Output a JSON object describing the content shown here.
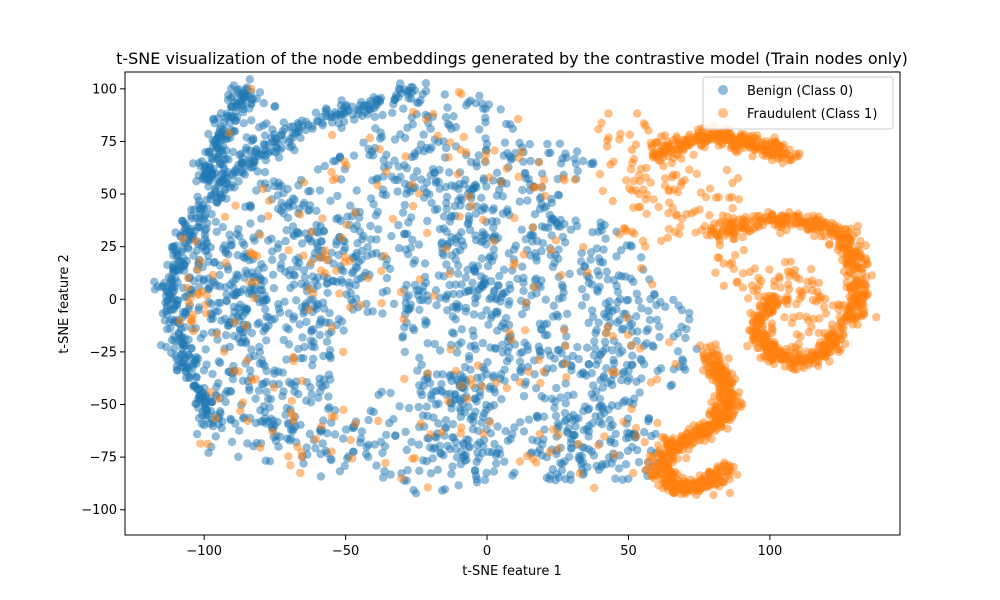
{
  "chart_data": {
    "type": "scatter",
    "title": "t-SNE visualization of the node embeddings generated by the contrastive model (Train nodes only)",
    "xlabel": "t-SNE feature 1",
    "ylabel": "t-SNE feature 2",
    "xlim": [
      -128,
      146
    ],
    "ylim": [
      -112,
      108
    ],
    "xticks": [
      -100,
      -50,
      0,
      50,
      100
    ],
    "yticks": [
      -100,
      -75,
      -50,
      -25,
      0,
      25,
      50,
      75,
      100
    ],
    "grid": false,
    "legend_position": "top-right",
    "series": [
      {
        "name": "Benign (Class 0)",
        "color": "#1f77b4",
        "alpha": 0.5,
        "regions": [
          {
            "cx": -83,
            "cy": 40,
            "rx": 18,
            "ry": 62
          },
          {
            "cx": -95,
            "cy": -5,
            "rx": 15,
            "ry": 45
          },
          {
            "cx": -70,
            "cy": -5,
            "rx": 18,
            "ry": 65
          },
          {
            "cx": -55,
            "cy": 20,
            "rx": 12,
            "ry": 50
          },
          {
            "cx": -85,
            "cy": -55,
            "rx": 20,
            "ry": 25
          },
          {
            "cx": -60,
            "cy": -65,
            "rx": 15,
            "ry": 20
          },
          {
            "cx": -105,
            "cy": 10,
            "rx": 8,
            "ry": 30
          },
          {
            "cx": -20,
            "cy": 75,
            "rx": 35,
            "ry": 25
          },
          {
            "cx": -25,
            "cy": 25,
            "rx": 30,
            "ry": 40
          },
          {
            "cx": -10,
            "cy": -15,
            "rx": 20,
            "ry": 35
          },
          {
            "cx": -20,
            "cy": -65,
            "rx": 25,
            "ry": 30
          },
          {
            "cx": 15,
            "cy": -55,
            "rx": 40,
            "ry": 35
          },
          {
            "cx": 5,
            "cy": 30,
            "rx": 22,
            "ry": 30
          },
          {
            "cx": 30,
            "cy": -5,
            "rx": 30,
            "ry": 45
          },
          {
            "cx": 40,
            "cy": -70,
            "rx": 25,
            "ry": 20
          },
          {
            "cx": 55,
            "cy": -20,
            "rx": 20,
            "ry": 25
          },
          {
            "cx": 20,
            "cy": 60,
            "rx": 20,
            "ry": 15
          }
        ],
        "arcs": [
          {
            "points": [
              [
                -25,
                98
              ],
              [
                -50,
                90
              ],
              [
                -70,
                80
              ],
              [
                -85,
                65
              ],
              [
                -100,
                45
              ],
              [
                -108,
                25
              ],
              [
                -113,
                5
              ],
              [
                -110,
                -20
              ],
              [
                -104,
                -40
              ],
              [
                -95,
                -60
              ]
            ]
          },
          {
            "points": [
              [
                -85,
                100
              ],
              [
                -92,
                85
              ],
              [
                -96,
                70
              ],
              [
                -100,
                55
              ]
            ]
          }
        ]
      },
      {
        "name": "Fraudulent (Class 1)",
        "color": "#ff7f0e",
        "alpha": 0.5,
        "regions": [
          {
            "cx": 58,
            "cy": 50,
            "rx": 18,
            "ry": 28
          },
          {
            "cx": 48,
            "cy": 80,
            "rx": 10,
            "ry": 10
          },
          {
            "cx": 112,
            "cy": -8,
            "rx": 18,
            "ry": 22
          },
          {
            "cx": 108,
            "cy": 5,
            "rx": 12,
            "ry": 15
          },
          {
            "cx": 90,
            "cy": 15,
            "rx": 12,
            "ry": 12
          },
          {
            "cx": 83,
            "cy": 50,
            "rx": 8,
            "ry": 12
          }
        ],
        "arcs": [
          {
            "points": [
              [
                60,
                70
              ],
              [
                70,
                75
              ],
              [
                80,
                78
              ],
              [
                90,
                75
              ],
              [
                100,
                72
              ],
              [
                105,
                68
              ]
            ]
          },
          {
            "points": [
              [
                78,
                30
              ],
              [
                90,
                35
              ],
              [
                105,
                38
              ],
              [
                118,
                35
              ],
              [
                128,
                28
              ],
              [
                130,
                15
              ],
              [
                132,
                0
              ],
              [
                128,
                -10
              ]
            ]
          },
          {
            "points": [
              [
                78,
                -25
              ],
              [
                82,
                -35
              ],
              [
                86,
                -45
              ],
              [
                84,
                -55
              ],
              [
                78,
                -62
              ],
              [
                68,
                -68
              ],
              [
                62,
                -75
              ],
              [
                62,
                -85
              ],
              [
                68,
                -90
              ],
              [
                78,
                -88
              ],
              [
                85,
                -80
              ]
            ]
          },
          {
            "points": [
              [
                100,
                0
              ],
              [
                95,
                -15
              ],
              [
                100,
                -25
              ],
              [
                110,
                -30
              ],
              [
                120,
                -25
              ],
              [
                125,
                -15
              ]
            ]
          }
        ],
        "scattered_points": 260
      }
    ]
  }
}
